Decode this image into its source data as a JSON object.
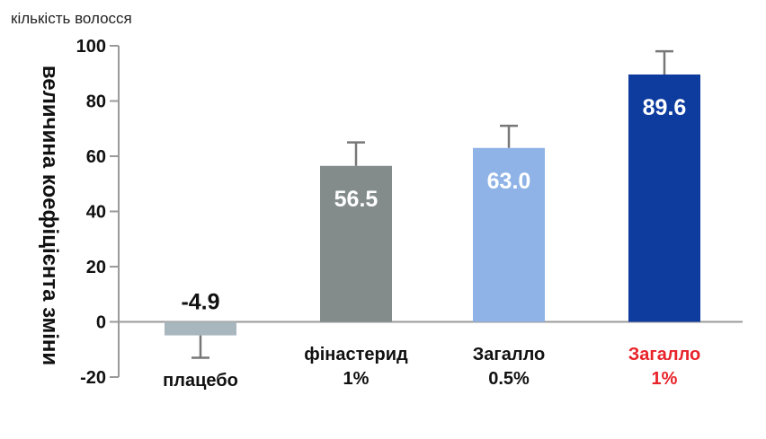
{
  "chart_data": {
    "type": "bar",
    "subtitle": "кількість волосся",
    "ylabel": "величина коефіцієнта зміни",
    "ylim": [
      -20,
      100
    ],
    "yticks": [
      -20,
      0,
      20,
      40,
      60,
      80,
      100
    ],
    "grid": false,
    "categories": [
      {
        "lines": [
          "плацебо"
        ],
        "label_color": "#111111"
      },
      {
        "lines": [
          "фінастерид",
          "1%"
        ],
        "label_color": "#111111"
      },
      {
        "lines": [
          "Загалло",
          "0.5%"
        ],
        "label_color": "#111111"
      },
      {
        "lines": [
          "Загалло",
          "1%"
        ],
        "label_color": "#e8232a"
      }
    ],
    "values": [
      -4.9,
      56.5,
      63.0,
      89.6
    ],
    "value_labels": [
      "-4.9",
      "56.5",
      "63.0",
      "89.6"
    ],
    "error_upper": [
      -13,
      65,
      71,
      98
    ],
    "colors": [
      "#a8b6bd",
      "#838b8b",
      "#8fb3e6",
      "#0d3b9e"
    ],
    "value_label_colors": [
      "#111111",
      "#ffffff",
      "#ffffff",
      "#ffffff"
    ]
  }
}
